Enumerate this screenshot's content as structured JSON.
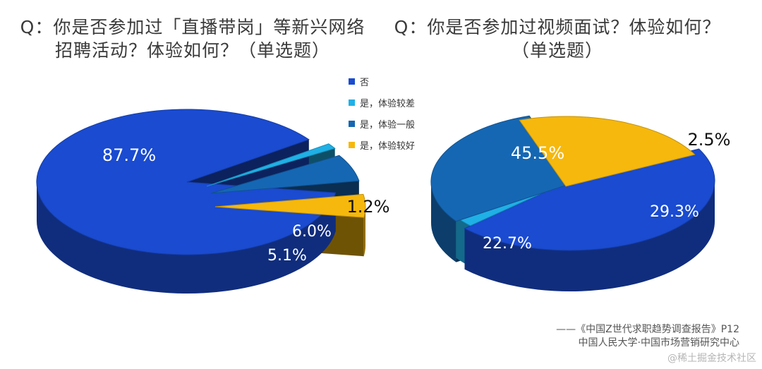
{
  "chart_data": [
    {
      "type": "pie",
      "title": "Q：你是否参加过「直播带岗」等新兴网络\n招聘活动？体验如何？（单选题）",
      "categories": [
        "否",
        "是，体验较差",
        "是，体验一般",
        "是，体验较好"
      ],
      "values": [
        87.7,
        1.2,
        6.0,
        5.1
      ],
      "labels": [
        "87.7%",
        "1.2%",
        "6.0%",
        "5.1%"
      ]
    },
    {
      "type": "pie",
      "title": "Q：你是否参加过视频面试？体验如何？\n（单选题）",
      "categories": [
        "否",
        "是，体验较差",
        "是，体验一般",
        "是，体验较好"
      ],
      "values": [
        45.5,
        2.5,
        29.3,
        22.7
      ],
      "labels": [
        "45.5%",
        "2.5%",
        "29.3%",
        "22.7%"
      ]
    }
  ],
  "legend": {
    "items": [
      {
        "label": "否",
        "color": "#1a4bd0"
      },
      {
        "label": "是，体验较差",
        "color": "#1fb0e6"
      },
      {
        "label": "是，体验一般",
        "color": "#1567b3"
      },
      {
        "label": "是，体验较好",
        "color": "#f6b80c"
      }
    ]
  },
  "source": {
    "line1": "——《中国Z世代求职趋势调查报告》P12",
    "line2": "中国人民大学·中国市场营销研究中心"
  },
  "watermark": "@稀土掘金技术社区"
}
